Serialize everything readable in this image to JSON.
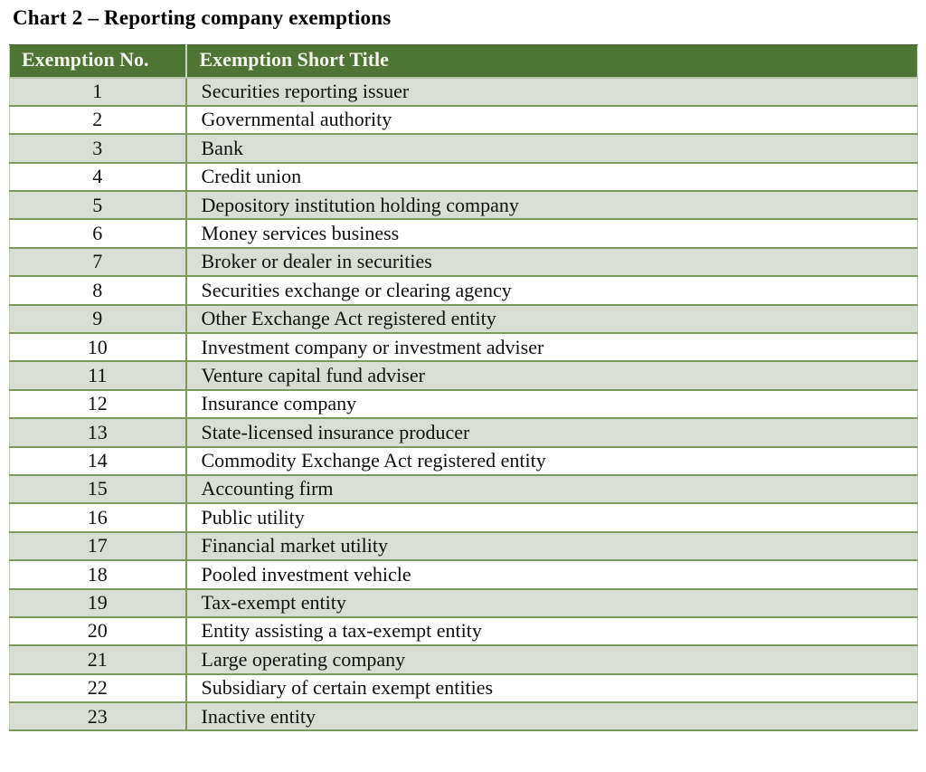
{
  "title": "Chart 2 – Reporting company exemptions",
  "table": {
    "columns": [
      "Exemption No.",
      "Exemption Short Title"
    ],
    "rows": [
      {
        "no": "1",
        "short_title": "Securities reporting issuer"
      },
      {
        "no": "2",
        "short_title": "Governmental authority"
      },
      {
        "no": "3",
        "short_title": "Bank"
      },
      {
        "no": "4",
        "short_title": "Credit union"
      },
      {
        "no": "5",
        "short_title": "Depository institution holding company"
      },
      {
        "no": "6",
        "short_title": "Money services business"
      },
      {
        "no": "7",
        "short_title": "Broker or dealer in securities"
      },
      {
        "no": "8",
        "short_title": "Securities exchange or clearing agency"
      },
      {
        "no": "9",
        "short_title": "Other Exchange Act registered entity"
      },
      {
        "no": "10",
        "short_title": "Investment company or investment adviser"
      },
      {
        "no": "11",
        "short_title": "Venture capital fund adviser"
      },
      {
        "no": "12",
        "short_title": "Insurance company"
      },
      {
        "no": "13",
        "short_title": "State-licensed insurance producer"
      },
      {
        "no": "14",
        "short_title": "Commodity Exchange Act registered entity"
      },
      {
        "no": "15",
        "short_title": "Accounting firm"
      },
      {
        "no": "16",
        "short_title": "Public utility"
      },
      {
        "no": "17",
        "short_title": "Financial market utility"
      },
      {
        "no": "18",
        "short_title": "Pooled investment vehicle"
      },
      {
        "no": "19",
        "short_title": "Tax-exempt entity"
      },
      {
        "no": "20",
        "short_title": "Entity assisting a tax-exempt entity"
      },
      {
        "no": "21",
        "short_title": "Large operating company"
      },
      {
        "no": "22",
        "short_title": "Subsidiary of certain exempt entities"
      },
      {
        "no": "23",
        "short_title": "Inactive entity"
      }
    ]
  },
  "colors": {
    "header_bg": "#4f7534",
    "header_text": "#f2f2ea",
    "row_alt_bg": "#d8ded3",
    "row_bg": "#ffffff",
    "grid_line": "#7d9a5e",
    "title_color": "#000000",
    "text_color": "#111111"
  }
}
